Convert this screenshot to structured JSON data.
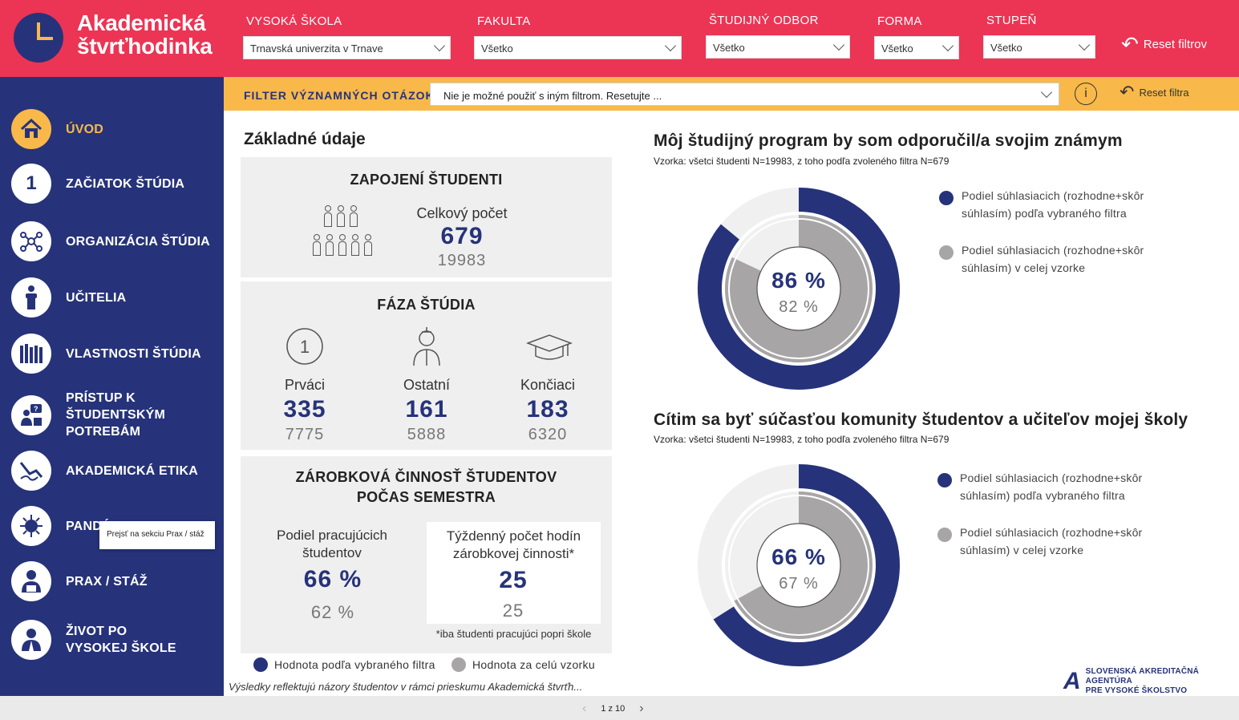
{
  "header": {
    "logo_line1": "Akademická",
    "logo_line2": "štvrťhodinka",
    "filters": [
      {
        "label": "VYSOKÁ ŠKOLA",
        "value": "Trnavská univerzita v Trnave"
      },
      {
        "label": "FAKULTA",
        "value": "Všetko"
      },
      {
        "label": "ŠTUDIJNÝ ODBOR",
        "value": "Všetko"
      },
      {
        "label": "FORMA",
        "value": "Všetko"
      },
      {
        "label": "STUPEŇ",
        "value": "Všetko"
      }
    ],
    "reset_label": "Reset filtrov"
  },
  "sidebar": {
    "items": [
      {
        "label": "ÚVOD",
        "icon": "home-icon"
      },
      {
        "label": "ZAČIATOK ŠTÚDIA",
        "icon": "number-one-icon"
      },
      {
        "label": "ORGANIZÁCIA ŠTÚDIA",
        "icon": "network-icon"
      },
      {
        "label": "UČITELIA",
        "icon": "lecturer-icon"
      },
      {
        "label": "VLASTNOSTI ŠTÚDIA",
        "icon": "books-icon"
      },
      {
        "label": "PRÍSTUP K ŠTUDENTSKÝM POTREBÁM",
        "icon": "help-person-icon"
      },
      {
        "label": "AKADEMICKÁ ETIKA",
        "icon": "signature-icon"
      },
      {
        "label": "PANDÉMIA",
        "icon": "virus-icon"
      },
      {
        "label": "PRAX / STÁŽ",
        "icon": "worker-icon"
      },
      {
        "label": "ŽIVOT PO VYSOKEJ ŠKOLE",
        "icon": "graduate-person-icon"
      }
    ],
    "tooltip": "Prejsť na sekciu Prax / stáž"
  },
  "question_filter": {
    "label": "FILTER VÝZNAMNÝCH OTÁZOK:",
    "value": "Nie je možné použiť s iným filtrom. Resetujte ...",
    "reset_label": "Reset filtra"
  },
  "basic": {
    "title": "Základné údaje",
    "students": {
      "title": "ZAPOJENÍ ŠTUDENTI",
      "label": "Celkový počet",
      "value": "679",
      "total": "19983"
    },
    "phase": {
      "title": "FÁZA ŠTÚDIA",
      "items": [
        {
          "label": "Prváci",
          "value": "335",
          "total": "7775"
        },
        {
          "label": "Ostatní",
          "value": "161",
          "total": "5888"
        },
        {
          "label": "Končiaci",
          "value": "183",
          "total": "6320"
        }
      ]
    },
    "work": {
      "title_line1": "ZÁROBKOVÁ ČINNOSŤ ŠTUDENTOV",
      "title_line2": "POČAS SEMESTRA",
      "share_label_line1": "Podiel pracujúcich",
      "share_label_line2": "študentov",
      "share_value": "66 %",
      "share_total": "62 %",
      "hours_label_line1": "Týždenný počet hodín",
      "hours_label_line2": "zárobkovej činnosti*",
      "hours_value": "25",
      "hours_total": "25",
      "note": "*iba študenti pracujúci popri škole"
    },
    "legend_filter": "Hodnota podľa vybraného filtra",
    "legend_all": "Hodnota za celú vzorku",
    "footnote": "Výsledky reflektujú názory študentov v rámci prieskumu Akademická štvrťh..."
  },
  "chart1": {
    "title": "Môj študijný program by som odporučil/a svojim známym",
    "subtitle": "Vzorka: všetci študenti N=19983, z toho podľa zvoleného filtra N=679",
    "center_main": "86 %",
    "center_sub": "82 %",
    "legend1_line1": "Podiel súhlasiacich (rozhodne+skôr",
    "legend1_line2": "súhlasím) podľa vybraného filtra",
    "legend2_line1": "Podiel súhlasiacich (rozhodne+skôr",
    "legend2_line2": "súhlasím) v celej vzorke"
  },
  "chart2": {
    "title": "Cítim sa byť súčasťou komunity študentov a učiteľov mojej školy",
    "subtitle": "Vzorka: všetci študenti N=19983, z toho podľa zvoleného filtra N=679",
    "center_main": "66 %",
    "center_sub": "67 %",
    "legend1_line1": "Podiel súhlasiacich (rozhodne+skôr",
    "legend1_line2": "súhlasím) podľa vybraného filtra",
    "legend2_line1": "Podiel súhlasiacich (rozhodne+skôr",
    "legend2_line2": "súhlasím) v celej vzorke"
  },
  "chart_data": [
    {
      "type": "pie",
      "title": "Môj študijný program by som odporučil/a svojim známym",
      "series": [
        {
          "name": "Podiel súhlasiacich (rozhodne+skôr súhlasím) podľa vybraného filtra",
          "values": [
            86
          ]
        },
        {
          "name": "Podiel súhlasiacich (rozhodne+skôr súhlasím) v celej vzorke",
          "values": [
            82
          ]
        }
      ]
    },
    {
      "type": "pie",
      "title": "Cítim sa byť súčasťou komunity študentov a učiteľov mojej školy",
      "series": [
        {
          "name": "Podiel súhlasiacich (rozhodne+skôr súhlasím) podľa vybraného filtra",
          "values": [
            66
          ]
        },
        {
          "name": "Podiel súhlasiacich (rozhodne+skôr súhlasím) v celej vzorke",
          "values": [
            67
          ]
        }
      ]
    }
  ],
  "colors": {
    "primary": "#26337a",
    "accent": "#ec3454",
    "yellow": "#f8b94a",
    "gray": "#a7a5a5",
    "light": "#efefef"
  },
  "agency": {
    "line1": "SLOVENSKÁ AKREDITAČNÁ AGENTÚRA",
    "line2": "PRE VYSOKÉ ŠKOLSTVO"
  },
  "pager": {
    "text": "1 z 10"
  }
}
